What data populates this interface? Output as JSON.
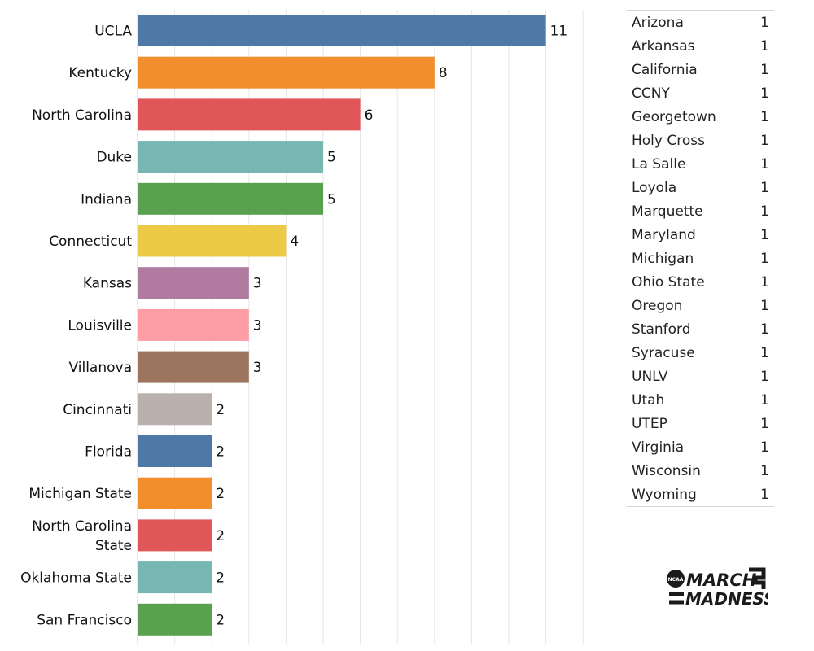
{
  "chart_data": {
    "type": "bar",
    "orientation": "horizontal",
    "categories": [
      "UCLA",
      "Kentucky",
      "North Carolina",
      "Duke",
      "Indiana",
      "Connecticut",
      "Kansas",
      "Louisville",
      "Villanova",
      "Cincinnati",
      "Florida",
      "Michigan State",
      "North Carolina State",
      "Oklahoma State",
      "San Francisco"
    ],
    "category_lines": [
      [
        "UCLA"
      ],
      [
        "Kentucky"
      ],
      [
        "North Carolina"
      ],
      [
        "Duke"
      ],
      [
        "Indiana"
      ],
      [
        "Connecticut"
      ],
      [
        "Kansas"
      ],
      [
        "Louisville"
      ],
      [
        "Villanova"
      ],
      [
        "Cincinnati"
      ],
      [
        "Florida"
      ],
      [
        "Michigan State"
      ],
      [
        "North Carolina",
        "State"
      ],
      [
        "Oklahoma State"
      ],
      [
        "San Francisco"
      ]
    ],
    "values": [
      11,
      8,
      6,
      5,
      5,
      4,
      3,
      3,
      3,
      2,
      2,
      2,
      2,
      2,
      2
    ],
    "colors": [
      "#4e79a7",
      "#f28e2b",
      "#e15759",
      "#76b7b2",
      "#59a14f",
      "#edc948",
      "#b07aa1",
      "#ff9da7",
      "#9c755f",
      "#bab0ac",
      "#4e79a7",
      "#f28e2b",
      "#e15759",
      "#76b7b2",
      "#59a14f"
    ],
    "xlim": [
      0,
      13
    ],
    "grid": true,
    "title": "",
    "xlabel": "",
    "ylabel": ""
  },
  "side_table": {
    "rows": [
      {
        "name": "Arizona",
        "count": "1"
      },
      {
        "name": "Arkansas",
        "count": "1"
      },
      {
        "name": "California",
        "count": "1"
      },
      {
        "name": "CCNY",
        "count": "1"
      },
      {
        "name": "Georgetown",
        "count": "1"
      },
      {
        "name": "Holy Cross",
        "count": "1"
      },
      {
        "name": "La Salle",
        "count": "1"
      },
      {
        "name": "Loyola",
        "count": "1"
      },
      {
        "name": "Marquette",
        "count": "1"
      },
      {
        "name": "Maryland",
        "count": "1"
      },
      {
        "name": "Michigan",
        "count": "1"
      },
      {
        "name": "Ohio State",
        "count": "1"
      },
      {
        "name": "Oregon",
        "count": "1"
      },
      {
        "name": "Stanford",
        "count": "1"
      },
      {
        "name": "Syracuse",
        "count": "1"
      },
      {
        "name": "UNLV",
        "count": "1"
      },
      {
        "name": "Utah",
        "count": "1"
      },
      {
        "name": "UTEP",
        "count": "1"
      },
      {
        "name": "Virginia",
        "count": "1"
      },
      {
        "name": "Wisconsin",
        "count": "1"
      },
      {
        "name": "Wyoming",
        "count": "1"
      }
    ]
  },
  "logo": {
    "badge": "NCAA",
    "line1": "MARCH",
    "line2": "MADNESS"
  }
}
